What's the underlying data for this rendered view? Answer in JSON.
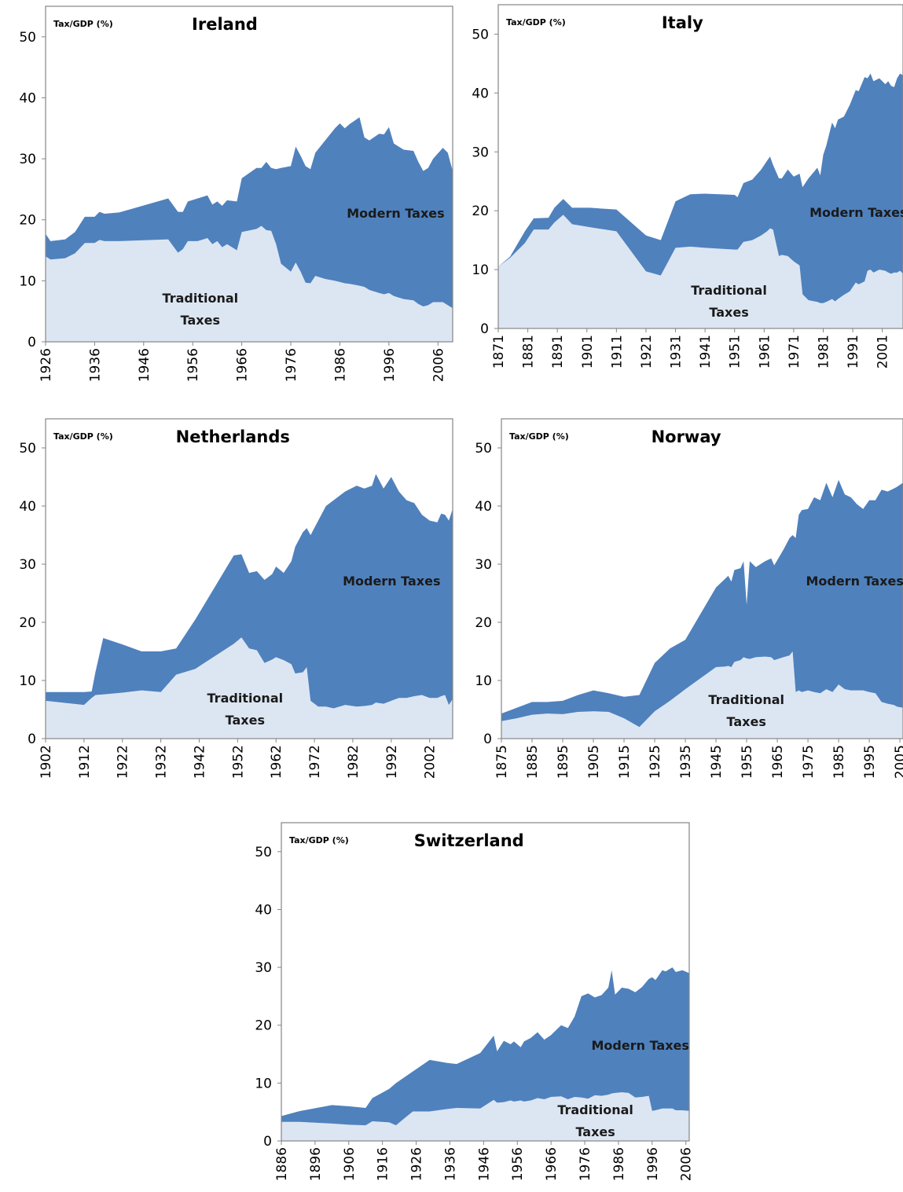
{
  "chart_data": [
    {
      "type": "area",
      "title": "Ireland",
      "ylabel": "Tax/GDP (%)",
      "x": [
        1926,
        1927,
        1930,
        1932,
        1934,
        1936,
        1937,
        1938,
        1941,
        1951,
        1953,
        1954,
        1955,
        1957,
        1959,
        1960,
        1961,
        1962,
        1963,
        1965,
        1966,
        1969,
        1970,
        1971,
        1972,
        1973,
        1974,
        1976,
        1977,
        1978,
        1979,
        1980,
        1981,
        1983,
        1985,
        1986,
        1987,
        1988,
        1990,
        1991,
        1992,
        1994,
        1995,
        1996,
        1997,
        1999,
        2001,
        2002,
        2003,
        2004,
        2005,
        2007,
        2008,
        2009
      ],
      "series": [
        {
          "name": "Traditional Taxes",
          "color": "#dce6f2",
          "values": [
            14,
            13.5,
            13.7,
            14.5,
            16.2,
            16.2,
            16.7,
            16.5,
            16.5,
            16.8,
            14.6,
            15.2,
            16.5,
            16.5,
            17,
            16,
            16.5,
            15.5,
            16,
            15,
            18,
            18.5,
            19,
            18.3,
            18.2,
            16,
            12.8,
            11.5,
            13,
            11.5,
            9.7,
            9.6,
            10.8,
            10.3,
            10,
            9.8,
            9.6,
            9.5,
            9.2,
            9,
            8.5,
            8,
            7.8,
            8,
            7.5,
            7,
            6.8,
            6.2,
            5.8,
            6,
            6.5,
            6.5,
            6,
            5.5
          ]
        },
        {
          "name": "Modern Taxes",
          "color": "#4f81bd",
          "values": [
            3.7,
            3.0,
            3.1,
            3.5,
            4.3,
            4.3,
            4.6,
            4.5,
            4.7,
            6.7,
            6.7,
            6.1,
            6.5,
            7.0,
            7.0,
            6.5,
            6.5,
            6.8,
            7.2,
            8.0,
            8.8,
            10.0,
            9.5,
            11.2,
            10.3,
            12.3,
            15.7,
            17.3,
            19.0,
            19.0,
            19.1,
            18.7,
            20.2,
            22.7,
            25.0,
            26.0,
            25.4,
            26.2,
            27.6,
            24.5,
            24.5,
            26.1,
            26.2,
            27.2,
            25.0,
            24.5,
            24.5,
            23.3,
            22.2,
            22.5,
            23.5,
            25.3,
            25.0,
            22.5
          ]
        }
      ],
      "stacked": true,
      "xlim": [
        1926,
        2009
      ],
      "xticks": [
        1926,
        1936,
        1946,
        1956,
        1966,
        1976,
        1986,
        1996,
        2006
      ],
      "ylim": [
        0,
        55
      ],
      "yticks": [
        0,
        10,
        20,
        30,
        40,
        50
      ]
    },
    {
      "type": "area",
      "title": "Italy",
      "ylabel": "Tax/GDP (%)",
      "x": [
        1871,
        1875,
        1880,
        1883,
        1888,
        1890,
        1893,
        1896,
        1902,
        1911,
        1921,
        1926,
        1931,
        1936,
        1941,
        1951,
        1952,
        1954,
        1957,
        1960,
        1962,
        1963,
        1964,
        1966,
        1967,
        1969,
        1971,
        1973,
        1974,
        1976,
        1979,
        1980,
        1981,
        1982,
        1984,
        1985,
        1986,
        1988,
        1990,
        1992,
        1993,
        1995,
        1996,
        1997,
        1998,
        2000,
        2002,
        2003,
        2004,
        2005,
        2006,
        2007,
        2008
      ],
      "series": [
        {
          "name": "Traditional Taxes",
          "color": "#dce6f2",
          "values": [
            10.5,
            12,
            14.5,
            16.8,
            16.8,
            18,
            19.3,
            17.7,
            17.2,
            16.5,
            9.7,
            9,
            13.7,
            13.9,
            13.7,
            13.4,
            13.4,
            14.7,
            15,
            15.8,
            16.5,
            17,
            16.8,
            12.3,
            12.5,
            12.3,
            11.4,
            10.7,
            5.8,
            4.8,
            4.5,
            4.3,
            4.3,
            4.5,
            5,
            4.6,
            5,
            5.7,
            6.3,
            7.8,
            7.5,
            8,
            9.8,
            10,
            9.5,
            10,
            9.8,
            9.5,
            9.3,
            9.5,
            9.5,
            9.8,
            9.3
          ]
        },
        {
          "name": "Modern Taxes",
          "color": "#4f81bd",
          "values": [
            0,
            0.2,
            2.0,
            1.9,
            2.0,
            2.5,
            2.7,
            2.8,
            3.3,
            3.7,
            6.1,
            6.0,
            7.9,
            8.9,
            9.2,
            9.3,
            8.9,
            10.0,
            10.3,
            11.2,
            12.0,
            12.2,
            11.0,
            13.2,
            13.0,
            14.7,
            14.4,
            15.6,
            18.2,
            20.7,
            22.8,
            21.7,
            25.2,
            26.5,
            30.0,
            29.4,
            30.5,
            30.3,
            31.7,
            32.7,
            32.8,
            34.7,
            32.7,
            33.3,
            32.5,
            32.5,
            31.7,
            32.5,
            31.9,
            31.5,
            33.0,
            33.5,
            33.7
          ]
        }
      ],
      "stacked": true,
      "xlim": [
        1871,
        2008
      ],
      "xticks": [
        1871,
        1881,
        1891,
        1901,
        1911,
        1921,
        1931,
        1941,
        1951,
        1961,
        1971,
        1981,
        1991,
        2001
      ],
      "ylim": [
        0,
        55
      ],
      "yticks": [
        0,
        10,
        20,
        30,
        40,
        50
      ]
    },
    {
      "type": "area",
      "title": "Netherlands",
      "ylabel": "Tax/GDP (%)",
      "x": [
        1902,
        1912,
        1914,
        1915,
        1917,
        1922,
        1927,
        1932,
        1936,
        1941,
        1951,
        1953,
        1955,
        1957,
        1959,
        1961,
        1962,
        1964,
        1966,
        1967,
        1969,
        1970,
        1971,
        1973,
        1975,
        1977,
        1980,
        1983,
        1985,
        1987,
        1988,
        1990,
        1992,
        1994,
        1996,
        1998,
        2000,
        2002,
        2004,
        2005,
        2006,
        2007,
        2008
      ],
      "series": [
        {
          "name": "Traditional Taxes",
          "color": "#dce6f2",
          "values": [
            6.5,
            5.8,
            7,
            7.5,
            7.6,
            7.9,
            8.3,
            8,
            11,
            12,
            16.3,
            17.4,
            15.5,
            15.2,
            13,
            13.6,
            14,
            13.5,
            12.8,
            11.2,
            11.4,
            12.3,
            6.5,
            5.5,
            5.5,
            5.2,
            5.8,
            5.5,
            5.6,
            5.8,
            6.2,
            6,
            6.5,
            7,
            7,
            7.3,
            7.5,
            7,
            7,
            7.3,
            7.5,
            5.8,
            6.8
          ]
        },
        {
          "name": "Modern Taxes",
          "color": "#4f81bd",
          "values": [
            1.5,
            2.2,
            1.1,
            4.0,
            9.7,
            8.3,
            6.7,
            7.0,
            4.5,
            8.5,
            15.2,
            14.3,
            13.0,
            13.6,
            14.3,
            14.7,
            15.6,
            15.0,
            17.7,
            21.8,
            24.1,
            23.9,
            28.5,
            32.0,
            34.5,
            35.8,
            36.7,
            38.0,
            37.4,
            37.7,
            39.3,
            37.0,
            38.5,
            35.5,
            34.0,
            33.2,
            31.0,
            30.5,
            30.2,
            31.4,
            31.0,
            31.7,
            32.7
          ]
        }
      ],
      "stacked": true,
      "xlim": [
        1902,
        2008
      ],
      "xticks": [
        1902,
        1912,
        1922,
        1932,
        1942,
        1952,
        1962,
        1972,
        1982,
        1992,
        2002
      ],
      "ylim": [
        0,
        55
      ],
      "yticks": [
        0,
        10,
        20,
        30,
        40,
        50
      ]
    },
    {
      "type": "area",
      "title": "Norway",
      "ylabel": "Tax/GDP (%)",
      "x": [
        1875,
        1880,
        1885,
        1890,
        1895,
        1900,
        1905,
        1910,
        1915,
        1920,
        1925,
        1930,
        1935,
        1945,
        1948,
        1949,
        1950,
        1951,
        1953,
        1954,
        1955,
        1956,
        1958,
        1961,
        1963,
        1964,
        1967,
        1969,
        1970,
        1971,
        1972,
        1973,
        1975,
        1977,
        1979,
        1981,
        1983,
        1985,
        1987,
        1989,
        1991,
        1993,
        1995,
        1997,
        1999,
        2001,
        2003,
        2004,
        2006
      ],
      "series": [
        {
          "name": "Traditional Taxes",
          "color": "#dce6f2",
          "values": [
            3,
            3.5,
            4.1,
            4.3,
            4.2,
            4.6,
            4.7,
            4.6,
            3.5,
            2,
            4.7,
            6.5,
            8.5,
            12.3,
            12.4,
            12.5,
            12.3,
            13.2,
            13.5,
            14,
            13.8,
            13.7,
            14,
            14.1,
            14,
            13.5,
            14,
            14.3,
            15,
            8,
            8.3,
            8,
            8.3,
            8,
            7.8,
            8.5,
            8,
            9.3,
            8.5,
            8.3,
            8.3,
            8.3,
            8,
            7.8,
            6.3,
            6,
            5.8,
            5.5,
            5.3
          ]
        },
        {
          "name": "Modern Taxes",
          "color": "#4f81bd",
          "values": [
            1.3,
            1.8,
            2.2,
            2.0,
            2.3,
            2.9,
            3.6,
            3.2,
            3.7,
            5.5,
            8.3,
            9.0,
            8.5,
            13.7,
            15.1,
            15.5,
            14.7,
            15.8,
            15.8,
            16.5,
            9.2,
            16.8,
            15.5,
            16.4,
            17.0,
            16.3,
            18.5,
            20.2,
            20.0,
            26.5,
            30.2,
            31.3,
            31.2,
            33.5,
            33.2,
            35.5,
            33.5,
            35.2,
            33.5,
            33.2,
            32.0,
            31.2,
            33.0,
            33.2,
            36.5,
            36.5,
            37.2,
            37.8,
            38.7
          ]
        }
      ],
      "stacked": true,
      "xlim": [
        1875,
        2006
      ],
      "xticks": [
        1875,
        1885,
        1895,
        1905,
        1915,
        1925,
        1935,
        1945,
        1955,
        1965,
        1975,
        1985,
        1995,
        2005
      ],
      "ylim": [
        0,
        55
      ],
      "yticks": [
        0,
        10,
        20,
        30,
        40,
        50
      ]
    },
    {
      "type": "area",
      "title": "Switzerland",
      "ylabel": "Tax/GDP (%)",
      "x": [
        1886,
        1891,
        1901,
        1906,
        1911,
        1913,
        1918,
        1920,
        1925,
        1930,
        1935,
        1938,
        1945,
        1949,
        1950,
        1952,
        1954,
        1955,
        1957,
        1958,
        1960,
        1962,
        1964,
        1966,
        1969,
        1971,
        1973,
        1975,
        1977,
        1979,
        1981,
        1983,
        1984,
        1985,
        1987,
        1989,
        1991,
        1993,
        1995,
        1996,
        1997,
        1999,
        2000,
        2002,
        2003,
        2005,
        2007
      ],
      "series": [
        {
          "name": "Traditional Taxes",
          "color": "#dce6f2",
          "values": [
            3.3,
            3.3,
            3,
            2.8,
            2.7,
            3.4,
            3.2,
            2.7,
            5.1,
            5.1,
            5.5,
            5.7,
            5.6,
            7.1,
            6.6,
            6.7,
            7,
            6.8,
            7,
            6.8,
            7,
            7.4,
            7.2,
            7.6,
            7.7,
            7.2,
            7.6,
            7.5,
            7.3,
            7.9,
            7.8,
            8,
            8.2,
            8.3,
            8.4,
            8.3,
            7.5,
            7.6,
            7.8,
            5.2,
            5.3,
            5.6,
            5.6,
            5.6,
            5.3,
            5.3,
            5.2
          ]
        },
        {
          "name": "Modern Taxes",
          "color": "#4f81bd",
          "values": [
            1.0,
            1.8,
            3.2,
            3.2,
            3.0,
            4.0,
            5.8,
            7.3,
            6.9,
            8.9,
            8.0,
            7.6,
            9.6,
            11.1,
            8.9,
            10.6,
            9.7,
            10.4,
            9.2,
            10.4,
            10.8,
            11.4,
            10.3,
            10.7,
            12.3,
            12.3,
            13.9,
            17.5,
            18.2,
            16.9,
            17.4,
            18.5,
            21.3,
            17.0,
            18.1,
            18.0,
            18.2,
            19.0,
            20.2,
            23.1,
            22.5,
            23.9,
            23.7,
            24.4,
            23.9,
            24.2,
            23.8
          ]
        }
      ],
      "stacked": true,
      "xlim": [
        1886,
        2007
      ],
      "xticks": [
        1886,
        1896,
        1906,
        1916,
        1926,
        1936,
        1946,
        1956,
        1966,
        1976,
        1986,
        1996,
        2006
      ],
      "ylim": [
        0,
        55
      ],
      "yticks": [
        0,
        10,
        20,
        30,
        40,
        50
      ]
    }
  ]
}
